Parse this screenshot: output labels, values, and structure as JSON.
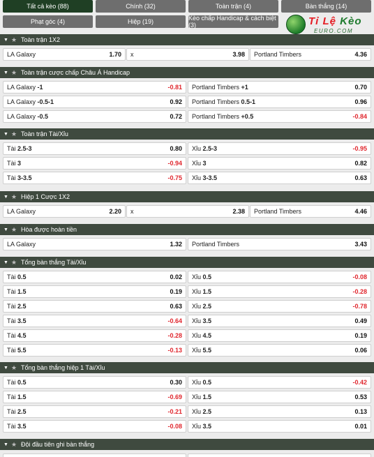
{
  "tabs_row1": [
    {
      "label": "Tất cả kèo (88)",
      "active": true
    },
    {
      "label": "Chính (32)",
      "active": false
    },
    {
      "label": "Toàn trận (4)",
      "active": false
    },
    {
      "label": "Bàn thắng (14)",
      "active": false
    }
  ],
  "tabs_row2": [
    {
      "label": "Phạt góc (4)",
      "active": false
    },
    {
      "label": "Hiệp (19)",
      "active": false
    },
    {
      "label": "Kèo chấp Handicap & cách biệt (3)",
      "active": false
    }
  ],
  "logo": {
    "text_a": "Tỉ Lệ ",
    "text_b": "Kèo",
    "sub": "EURO.COM"
  },
  "sections": {
    "s1": {
      "title": "Toàn trận 1X2",
      "home": {
        "label": "LA Galaxy",
        "odds": "1.70"
      },
      "draw": {
        "label": "x",
        "odds": "3.98"
      },
      "away": {
        "label": "Portland Timbers",
        "odds": "4.36"
      }
    },
    "s2": {
      "title": "Toàn trận cược chấp Châu Á Handicap",
      "rows": [
        {
          "l_team": "LA Galaxy",
          "l_line": "-1",
          "l_odds": "-0.81",
          "r_team": "Portland Timbers",
          "r_line": "+1",
          "r_odds": "0.70"
        },
        {
          "l_team": "LA Galaxy",
          "l_line": "-0.5-1",
          "l_odds": "0.92",
          "r_team": "Portland Timbers",
          "r_line": "0.5-1",
          "r_odds": "0.96"
        },
        {
          "l_team": "LA Galaxy",
          "l_line": "-0.5",
          "l_odds": "0.72",
          "r_team": "Portland Timbers",
          "r_line": "+0.5",
          "r_odds": "-0.84"
        }
      ]
    },
    "s3": {
      "title": "Toàn trận Tài/Xỉu",
      "rows": [
        {
          "l_team": "Tài",
          "l_line": "2.5-3",
          "l_odds": "0.80",
          "r_team": "Xỉu",
          "r_line": "2.5-3",
          "r_odds": "-0.95"
        },
        {
          "l_team": "Tài",
          "l_line": "3",
          "l_odds": "-0.94",
          "r_team": "Xỉu",
          "r_line": "3",
          "r_odds": "0.82"
        },
        {
          "l_team": "Tài",
          "l_line": "3-3.5",
          "l_odds": "-0.75",
          "r_team": "Xỉu",
          "r_line": "3-3.5",
          "r_odds": "0.63"
        }
      ]
    },
    "s4": {
      "title": "Hiệp 1 Cược 1X2",
      "home": {
        "label": "LA Galaxy",
        "odds": "2.20"
      },
      "draw": {
        "label": "x",
        "odds": "2.38"
      },
      "away": {
        "label": "Portland Timbers",
        "odds": "4.46"
      }
    },
    "s5": {
      "title": "Hòa được hoàn tiền",
      "home": {
        "label": "LA Galaxy",
        "odds": "1.32"
      },
      "away": {
        "label": "Portland Timbers",
        "odds": "3.43"
      }
    },
    "s6": {
      "title": "Tổng bàn thắng Tài/Xỉu",
      "rows": [
        {
          "l_team": "Tài",
          "l_line": "0.5",
          "l_odds": "0.02",
          "r_team": "Xỉu",
          "r_line": "0.5",
          "r_odds": "-0.08"
        },
        {
          "l_team": "Tài",
          "l_line": "1.5",
          "l_odds": "0.19",
          "r_team": "Xỉu",
          "r_line": "1.5",
          "r_odds": "-0.28"
        },
        {
          "l_team": "Tài",
          "l_line": "2.5",
          "l_odds": "0.63",
          "r_team": "Xỉu",
          "r_line": "2.5",
          "r_odds": "-0.78"
        },
        {
          "l_team": "Tài",
          "l_line": "3.5",
          "l_odds": "-0.64",
          "r_team": "Xỉu",
          "r_line": "3.5",
          "r_odds": "0.49"
        },
        {
          "l_team": "Tài",
          "l_line": "4.5",
          "l_odds": "-0.28",
          "r_team": "Xỉu",
          "r_line": "4.5",
          "r_odds": "0.19"
        },
        {
          "l_team": "Tài",
          "l_line": "5.5",
          "l_odds": "-0.13",
          "r_team": "Xỉu",
          "r_line": "5.5",
          "r_odds": "0.06"
        }
      ]
    },
    "s7": {
      "title": "Tổng bàn thắng hiệp 1 Tài/Xỉu",
      "rows": [
        {
          "l_team": "Tài",
          "l_line": "0.5",
          "l_odds": "0.30",
          "r_team": "Xỉu",
          "r_line": "0.5",
          "r_odds": "-0.42"
        },
        {
          "l_team": "Tài",
          "l_line": "1.5",
          "l_odds": "-0.69",
          "r_team": "Xỉu",
          "r_line": "1.5",
          "r_odds": "0.53"
        },
        {
          "l_team": "Tài",
          "l_line": "2.5",
          "l_odds": "-0.21",
          "r_team": "Xỉu",
          "r_line": "2.5",
          "r_odds": "0.13"
        },
        {
          "l_team": "Tài",
          "l_line": "3.5",
          "l_odds": "-0.08",
          "r_team": "Xỉu",
          "r_line": "3.5",
          "r_odds": "0.01"
        }
      ]
    },
    "s8": {
      "title": "Đội đầu tiên ghi bàn thắng"
    }
  },
  "colors": {
    "negative": "#e0262d",
    "header_bg": "#3f4a3f",
    "tab_active": "#1f3f24",
    "tab_bg": "#6e6e6e"
  }
}
